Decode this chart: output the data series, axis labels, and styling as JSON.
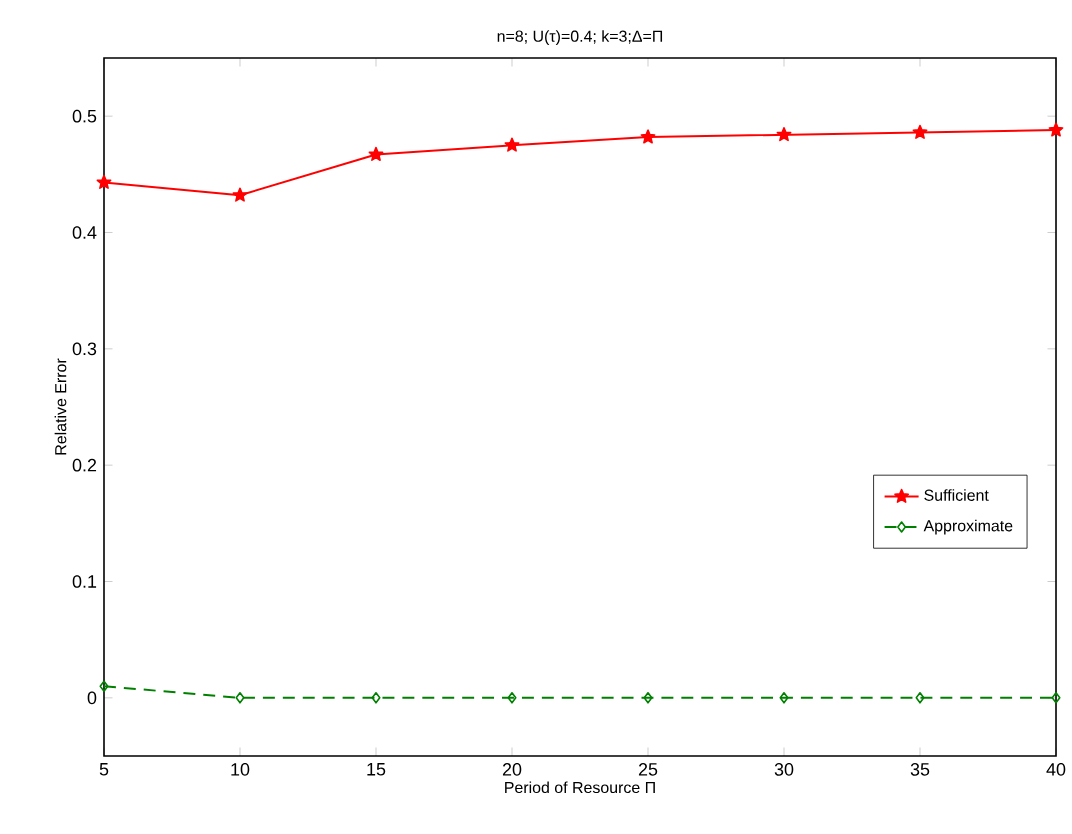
{
  "chart_data": {
    "type": "line",
    "title": "n=8; U(τ)=0.4; k=3;Δ=Π",
    "xlabel": "Period of Resource Π",
    "ylabel": "Relative Error",
    "x": [
      5,
      10,
      15,
      20,
      25,
      30,
      35,
      40
    ],
    "series": [
      {
        "name": "Sufficient",
        "color": "#ff0000",
        "marker": "star",
        "line_style": "solid",
        "values": [
          0.443,
          0.432,
          0.467,
          0.475,
          0.482,
          0.484,
          0.486,
          0.488
        ]
      },
      {
        "name": "Approximate",
        "color": "#008000",
        "marker": "diamond",
        "line_style": "dashed",
        "values": [
          0.01,
          0,
          0,
          0,
          0,
          0,
          0,
          0
        ]
      }
    ],
    "xlim": [
      5,
      40
    ],
    "ylim": [
      -0.05,
      0.55
    ],
    "xticks": [
      5,
      10,
      15,
      20,
      25,
      30,
      35,
      40
    ],
    "yticks": [
      0,
      0.1,
      0.2,
      0.3,
      0.4,
      0.5
    ],
    "grid": false,
    "legend": "right"
  }
}
